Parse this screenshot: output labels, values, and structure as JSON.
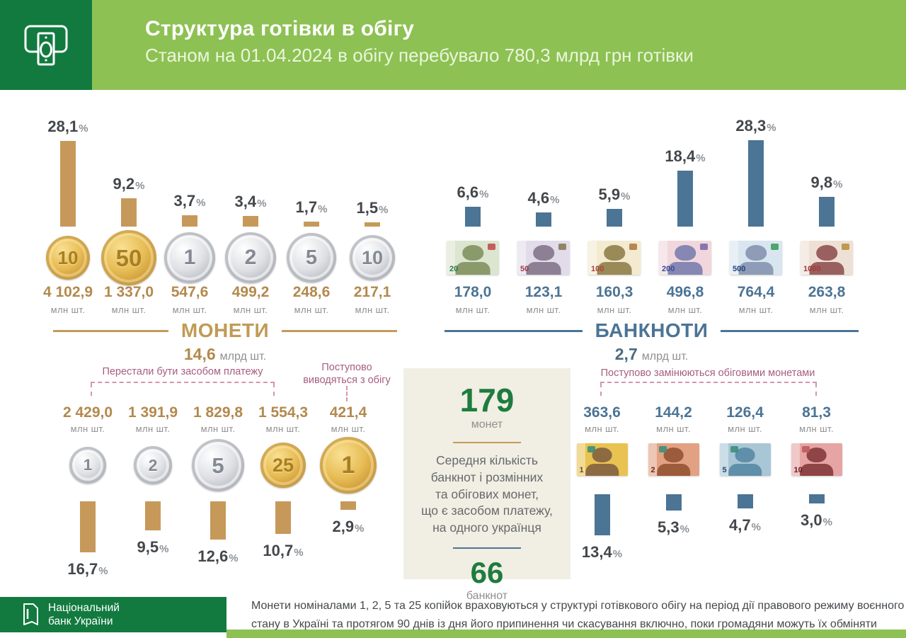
{
  "header": {
    "title": "Структура готівки в обігу",
    "subtitle": "Станом на 01.04.2024 в обігу перебувало 780,3 млрд грн готівки"
  },
  "percent_suffix": "%",
  "colors": {
    "green_dark": "#127a3f",
    "green_light": "#8dc153",
    "coin_bar": "#c6995a",
    "coin_text": "#b3894d",
    "banknote_bar": "#4b7495",
    "banknote_text": "#4b7495",
    "annotation_pink": "#a75d7f",
    "bracket_pink": "#d795ad",
    "number_green": "#1d7c3e"
  },
  "chart_data": [
    {
      "type": "bar",
      "group": "coins-in-circulation",
      "title": "МОНЕТИ",
      "total": "14,6",
      "total_unit": "млрд шт.",
      "unit": "млн шт.",
      "bar_color": "#c6995a",
      "categories": [
        "10 коп",
        "50 коп",
        "1 грн",
        "2 грн",
        "5 грн",
        "10 грн"
      ],
      "columns": [
        {
          "percent": "28,1",
          "count": "4 102,9",
          "coin": {
            "metal": "gold",
            "num": "10",
            "size": 62
          }
        },
        {
          "percent": "9,2",
          "count": "1 337,0",
          "coin": {
            "metal": "gold",
            "num": "50",
            "size": 78
          }
        },
        {
          "percent": "3,7",
          "count": "547,6",
          "coin": {
            "metal": "silver",
            "num": "1",
            "size": 72
          }
        },
        {
          "percent": "3,4",
          "count": "499,2",
          "coin": {
            "metal": "silver",
            "num": "2",
            "size": 72
          }
        },
        {
          "percent": "1,7",
          "count": "248,6",
          "coin": {
            "metal": "silver",
            "num": "5",
            "size": 70
          }
        },
        {
          "percent": "1,5",
          "count": "217,1",
          "coin": {
            "metal": "silver",
            "num": "10",
            "size": 64
          }
        }
      ]
    },
    {
      "type": "bar",
      "group": "banknotes-in-circulation",
      "title": "БАНКНОТИ",
      "total": "2,7",
      "total_unit": "млрд шт.",
      "unit": "млн шт.",
      "bar_color": "#4b7495",
      "categories": [
        "20 грн",
        "50 грн",
        "100 грн",
        "200 грн",
        "500 грн",
        "1000 грн"
      ],
      "columns": [
        {
          "percent": "6,6",
          "count": "178,0",
          "note": {
            "bg": "#dce5cf",
            "fg": "#8b9a6b",
            "num": "20",
            "num_color": "#2e7d4f",
            "accent": "#c0504d",
            "accent_pos": "tr"
          }
        },
        {
          "percent": "4,6",
          "count": "123,1",
          "note": {
            "bg": "#e2dcea",
            "fg": "#8d8095",
            "num": "50",
            "num_color": "#a03b52",
            "accent": "#8a7a5a",
            "accent_pos": "tr"
          }
        },
        {
          "percent": "5,9",
          "count": "160,3",
          "note": {
            "bg": "#f3ead0",
            "fg": "#998a58",
            "num": "100",
            "num_color": "#b04038",
            "accent": "#b07a44",
            "accent_pos": "tr"
          }
        },
        {
          "percent": "18,4",
          "count": "496,8",
          "note": {
            "bg": "#f1d7dd",
            "fg": "#8687b2",
            "num": "200",
            "num_color": "#3b4a9b",
            "accent": "#7d6aa8",
            "accent_pos": "tr"
          }
        },
        {
          "percent": "28,3",
          "count": "764,4",
          "note": {
            "bg": "#d9e6ef",
            "fg": "#8f9cb8",
            "num": "500",
            "num_color": "#27427c",
            "accent": "#3f9d63",
            "accent_pos": "tr"
          }
        },
        {
          "percent": "9,8",
          "count": "263,8",
          "note": {
            "bg": "#efe0d6",
            "fg": "#9a6060",
            "num": "1000",
            "num_color": "#a03b3b",
            "accent": "#b8913f",
            "accent_pos": "tr"
          }
        }
      ]
    },
    {
      "type": "bar",
      "group": "coins-withdrawn",
      "annotation": "Перестали бути засобом платежу",
      "annotation2": "Поступово\nвиводяться з обігу",
      "unit": "млн шт.",
      "bar_color": "#c6995a",
      "categories": [
        "1 коп",
        "2 коп",
        "5 коп",
        "25 коп",
        "1 грн"
      ],
      "columns": [
        {
          "percent": "16,7",
          "count": "2 429,0",
          "coin": {
            "metal": "silver",
            "num": "1",
            "size": 52
          }
        },
        {
          "percent": "9,5",
          "count": "1 391,9",
          "coin": {
            "metal": "silver",
            "num": "2",
            "size": 54
          }
        },
        {
          "percent": "12,6",
          "count": "1 829,8",
          "coin": {
            "metal": "silver",
            "num": "5",
            "size": 74
          }
        },
        {
          "percent": "10,7",
          "count": "1 554,3",
          "coin": {
            "metal": "gold",
            "num": "25",
            "size": 64
          }
        },
        {
          "percent": "2,9",
          "count": "421,4",
          "coin": {
            "metal": "gold",
            "num": "1",
            "size": 80
          }
        }
      ]
    },
    {
      "type": "bar",
      "group": "paper-notes-replaced-by-coins",
      "annotation": "Поступово замінюються обіговими монетами",
      "unit": "млн шт.",
      "bar_color": "#4b7495",
      "categories": [
        "1 грн",
        "2 грн",
        "5 грн",
        "10 грн"
      ],
      "columns": [
        {
          "percent": "13,4",
          "count": "363,6",
          "note": {
            "bg": "#e9c351",
            "fg": "#8d6b42",
            "num": "1",
            "num_color": "#6b4a2a",
            "accent": "#3a8f7a",
            "accent_pos": "tl"
          }
        },
        {
          "percent": "5,3",
          "count": "144,2",
          "note": {
            "bg": "#e3a183",
            "fg": "#9c5b3b",
            "num": "2",
            "num_color": "#6b2a1a",
            "accent": "#3a8f7a",
            "accent_pos": "tl"
          }
        },
        {
          "percent": "4,7",
          "count": "126,4",
          "note": {
            "bg": "#a8c6d6",
            "fg": "#5f8fa9",
            "num": "5",
            "num_color": "#2a4a6b",
            "accent": "#3a8f7a",
            "accent_pos": "tl"
          }
        },
        {
          "percent": "3,0",
          "count": "81,3",
          "note": {
            "bg": "#e6a4a4",
            "fg": "#8f4545",
            "num": "10",
            "num_color": "#6b1a2a",
            "accent": "#c05a5a",
            "accent_pos": "tl"
          }
        }
      ]
    }
  ],
  "center_box": {
    "coins_count": "179",
    "coins_label": "монет",
    "text": "Середня кількість\nбанкнот і розмінних\nта обігових монет,\nщо є засобом платежу,\nна одного українця",
    "banknotes_count": "66",
    "banknotes_label": "банкнот"
  },
  "footer": {
    "logo_line1": "Національний",
    "logo_line2": "банк України",
    "note_line1": "Монети номіналами 1, 2, 5 та 25 копійок враховуються у структурі готівкового обігу на період дії правового режиму воєнного",
    "note_line2": "стану в Україні та протягом 90 днів із дня його припинення чи скасування включно, поки громадяни можуть їх обміняти"
  }
}
